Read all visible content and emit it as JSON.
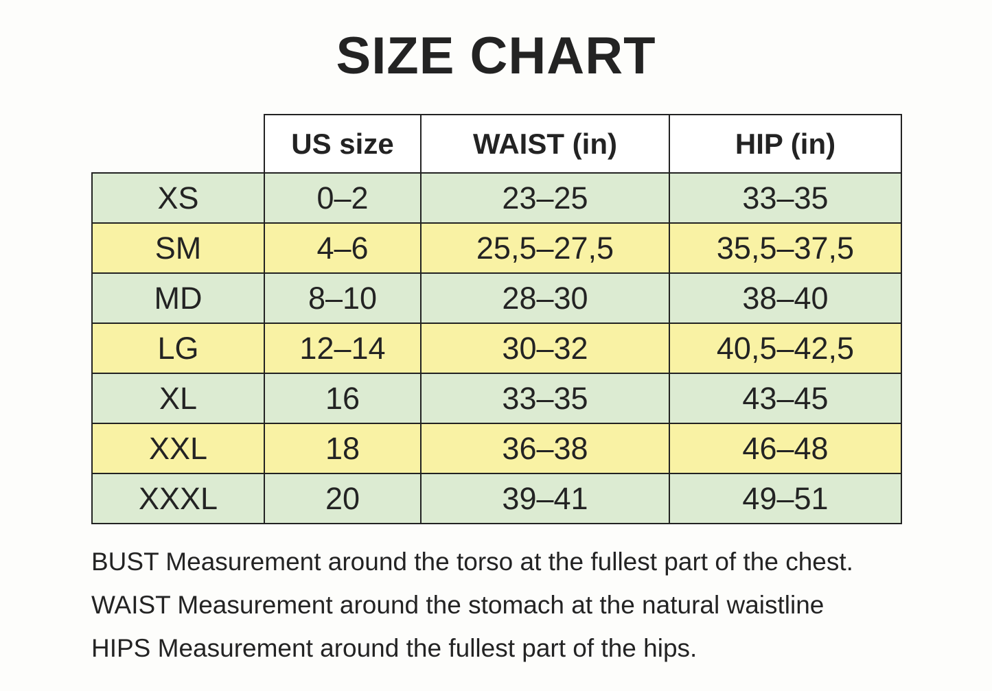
{
  "title": "SIZE CHART",
  "table": {
    "columns": [
      "US size",
      "WAIST (in)",
      "HIP (in)"
    ],
    "rows": [
      {
        "size": "XS",
        "us": "0–2",
        "waist": "23–25",
        "hip": "33–35",
        "bg": "green"
      },
      {
        "size": "SM",
        "us": "4–6",
        "waist": "25,5–27,5",
        "hip": "35,5–37,5",
        "bg": "yellow"
      },
      {
        "size": "MD",
        "us": "8–10",
        "waist": "28–30",
        "hip": "38–40",
        "bg": "green"
      },
      {
        "size": "LG",
        "us": "12–14",
        "waist": "30–32",
        "hip": "40,5–42,5",
        "bg": "yellow"
      },
      {
        "size": "XL",
        "us": "16",
        "waist": "33–35",
        "hip": "43–45",
        "bg": "green"
      },
      {
        "size": "XXL",
        "us": "18",
        "waist": "36–38",
        "hip": "46–48",
        "bg": "yellow"
      },
      {
        "size": "XXXL",
        "us": "20",
        "waist": "39–41",
        "hip": "49–51",
        "bg": "green"
      }
    ]
  },
  "notes": [
    "BUST Measurement around the torso at the fullest part of the chest.",
    "WAIST Measurement around the stomach at the natural waistline",
    "HIPS Measurement around the fullest part of the hips."
  ],
  "colors": {
    "row_green": "#dcebd2",
    "row_yellow": "#f9f2a4",
    "border": "#222222",
    "text": "#232323",
    "background": "#fdfdfb"
  },
  "chart_data": {
    "type": "table",
    "title": "SIZE CHART",
    "columns": [
      "",
      "US size",
      "WAIST (in)",
      "HIP (in)"
    ],
    "rows": [
      [
        "XS",
        "0–2",
        "23–25",
        "33–35"
      ],
      [
        "SM",
        "4–6",
        "25,5–27,5",
        "35,5–37,5"
      ],
      [
        "MD",
        "8–10",
        "28–30",
        "38–40"
      ],
      [
        "LG",
        "12–14",
        "30–32",
        "40,5–42,5"
      ],
      [
        "XL",
        "16",
        "33–35",
        "43–45"
      ],
      [
        "XXL",
        "18",
        "36–38",
        "46–48"
      ],
      [
        "XXXL",
        "20",
        "39–41",
        "49–51"
      ]
    ],
    "notes": [
      "BUST Measurement around the torso at the fullest part of the chest.",
      "WAIST Measurement around the stomach at the natural waistline",
      "HIPS Measurement around the fullest part of the hips."
    ],
    "layout_hints": {
      "row_band_colors": [
        "green",
        "yellow"
      ],
      "first_column_has_no_header": true,
      "grid": true
    }
  }
}
